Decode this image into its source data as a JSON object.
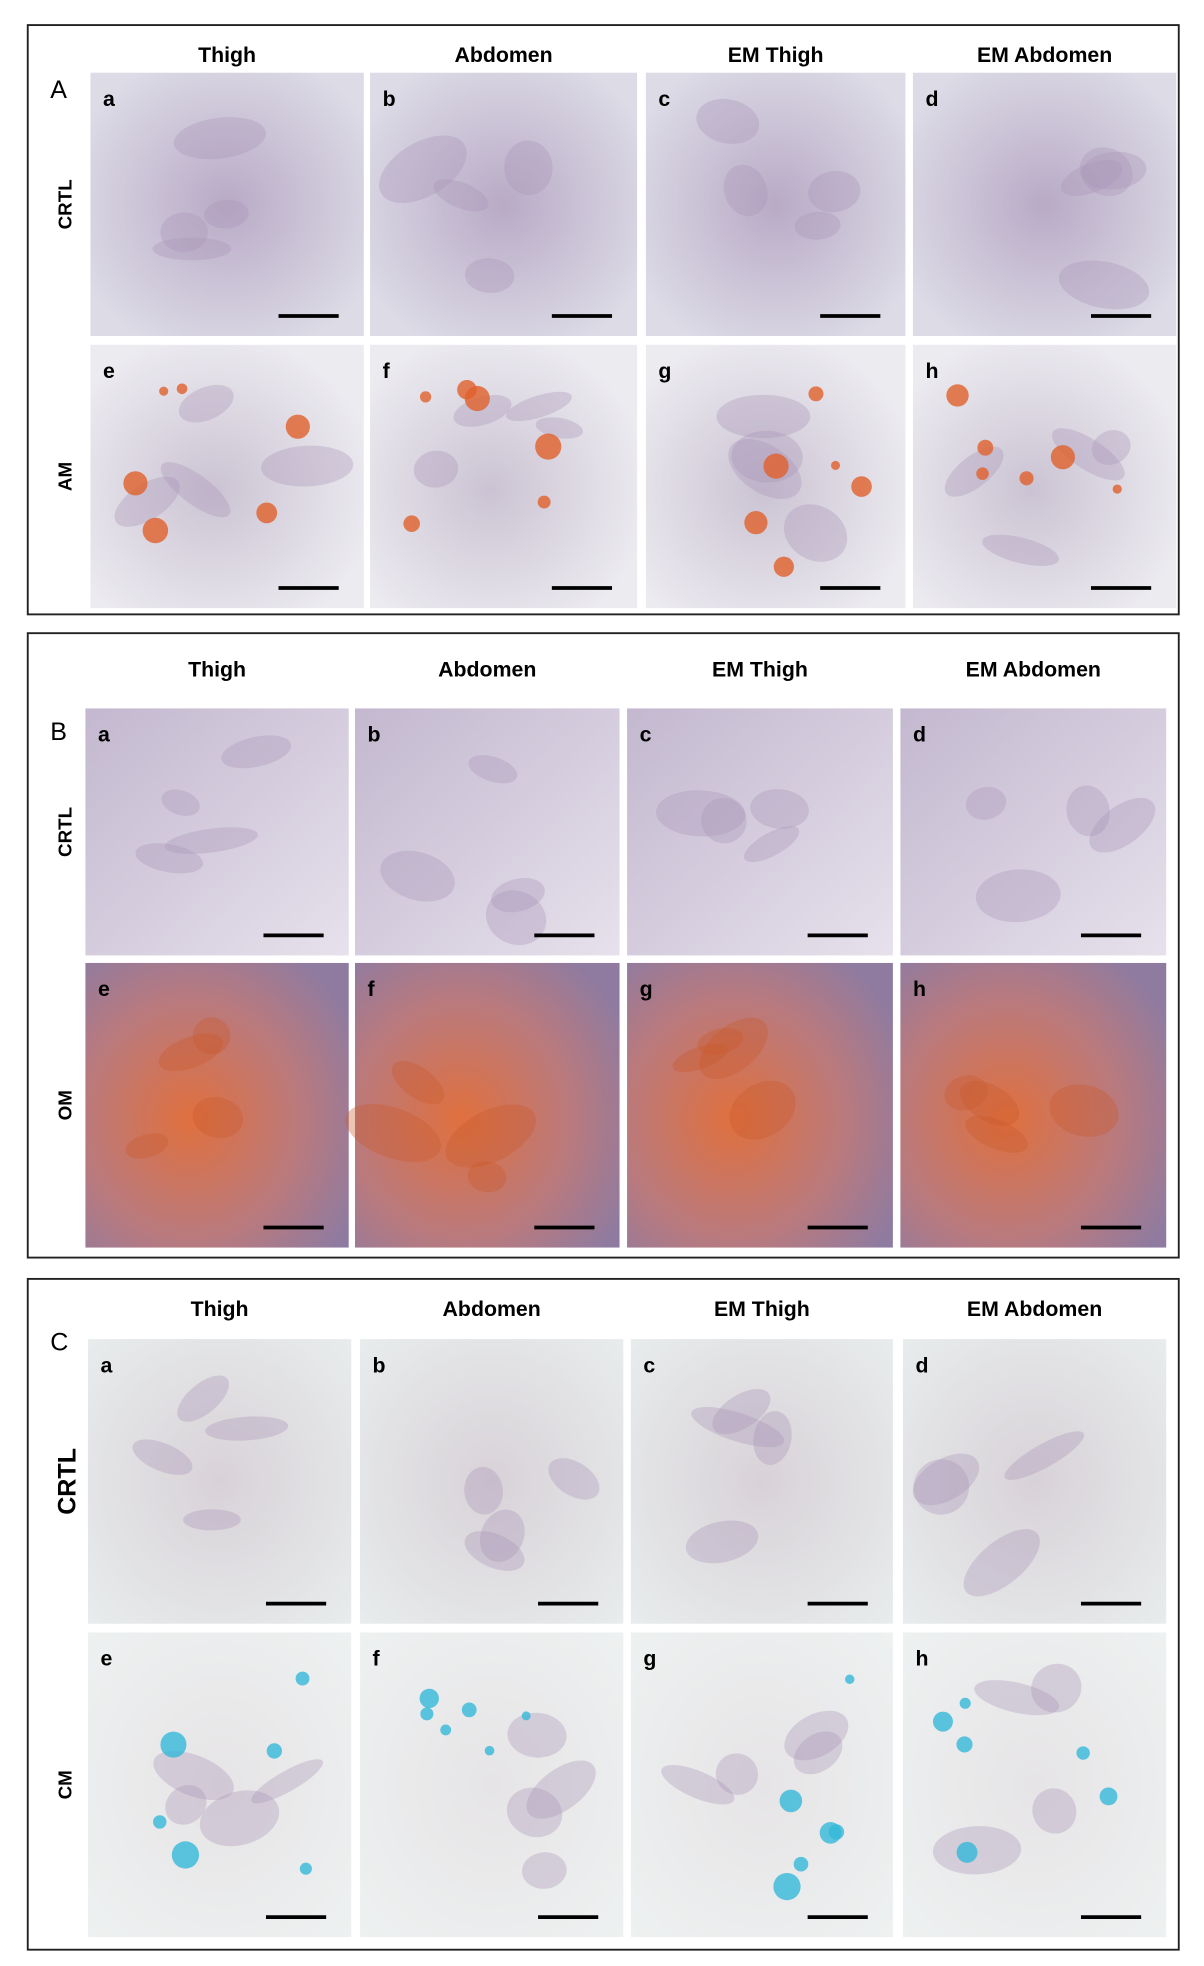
{
  "figure": {
    "panels": [
      {
        "label": "A",
        "columns": [
          "Thigh",
          "Abdomen",
          "EM Thigh",
          "EM Abdomen"
        ],
        "rows": [
          {
            "label": "CRTL",
            "cells": [
              "a",
              "b",
              "c",
              "d"
            ]
          },
          {
            "label": "AM",
            "cells": [
              "e",
              "f",
              "g",
              "h"
            ]
          }
        ]
      },
      {
        "label": "B",
        "columns": [
          "Thigh",
          "Abdomen",
          "EM Thigh",
          "EM Abdomen"
        ],
        "rows": [
          {
            "label": "CRTL",
            "cells": [
              "a",
              "b",
              "c",
              "d"
            ]
          },
          {
            "label": "OM",
            "cells": [
              "e",
              "f",
              "g",
              "h"
            ]
          }
        ]
      },
      {
        "label": "C",
        "columns": [
          "Thigh",
          "Abdomen",
          "EM Thigh",
          "EM Abdomen"
        ],
        "rows": [
          {
            "label": "CRTL",
            "cells": [
              "a",
              "b",
              "c",
              "d"
            ]
          },
          {
            "label": "CM",
            "cells": [
              "e",
              "f",
              "g",
              "h"
            ]
          }
        ]
      }
    ]
  }
}
